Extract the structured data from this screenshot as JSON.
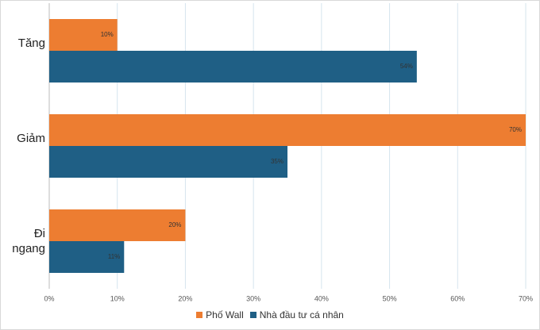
{
  "chart_data": {
    "type": "barh",
    "categories": [
      "Tăng",
      "Giảm",
      "Đi ngang"
    ],
    "series": [
      {
        "name": "Phố Wall",
        "color": "#ed7d31",
        "values": [
          10,
          70,
          20
        ],
        "value_labels": [
          "10%",
          "70%",
          "20%"
        ]
      },
      {
        "name": "Nhà đầu tư cá nhân",
        "color": "#1f5f85",
        "values": [
          54,
          35,
          11
        ],
        "value_labels": [
          "54%",
          "35%",
          "11%"
        ]
      }
    ],
    "xlim": [
      0,
      70
    ],
    "xticks": [
      {
        "value": 0,
        "label": "0%"
      },
      {
        "value": 10,
        "label": "10%"
      },
      {
        "value": 20,
        "label": "20%"
      },
      {
        "value": 30,
        "label": "30%"
      },
      {
        "value": 40,
        "label": "40%"
      },
      {
        "value": 50,
        "label": "50%"
      },
      {
        "value": 60,
        "label": "60%"
      },
      {
        "value": 70,
        "label": "70%"
      }
    ],
    "grid": true,
    "legend": "bottom"
  }
}
